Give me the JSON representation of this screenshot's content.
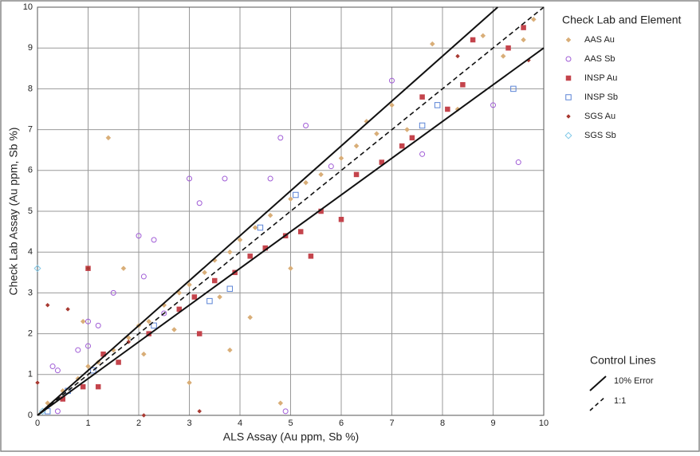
{
  "chart_data": {
    "type": "scatter",
    "xlabel": "ALS Assay (Au ppm, Sb %)",
    "ylabel": "Check Lab Assay (Au ppm, Sb %)",
    "xlim": [
      0,
      10
    ],
    "ylim": [
      0,
      10
    ],
    "xticks": [
      0,
      1,
      2,
      3,
      4,
      5,
      6,
      7,
      8,
      9,
      10
    ],
    "yticks": [
      0,
      1,
      2,
      3,
      4,
      5,
      6,
      7,
      8,
      9,
      10
    ],
    "grid": true,
    "legend_title": "Check Lab and Element",
    "series": [
      {
        "name": "AAS Au",
        "color": "#d9ae78",
        "marker": "diamond",
        "x": [
          1.4,
          0.2,
          0.5,
          0.8,
          1.0,
          1.2,
          1.5,
          1.8,
          2.0,
          2.2,
          2.5,
          2.8,
          3.0,
          3.3,
          3.5,
          3.8,
          4.0,
          4.3,
          4.6,
          5.0,
          5.3,
          5.6,
          6.0,
          6.3,
          6.7,
          7.0,
          7.8,
          8.3,
          8.8,
          9.2,
          9.6,
          9.8,
          4.8,
          3.0,
          3.8,
          4.2,
          1.7,
          2.1,
          0.9,
          5.0,
          6.5,
          7.3,
          3.6,
          2.7
        ],
        "values": [
          6.8,
          0.3,
          0.6,
          0.9,
          1.2,
          1.3,
          1.6,
          1.9,
          2.2,
          2.3,
          2.7,
          3.0,
          3.2,
          3.5,
          3.8,
          4.0,
          4.3,
          4.6,
          4.9,
          5.3,
          5.7,
          5.9,
          6.3,
          6.6,
          6.9,
          7.6,
          9.1,
          7.5,
          9.3,
          8.8,
          9.2,
          9.7,
          0.3,
          0.8,
          1.6,
          2.4,
          3.6,
          1.5,
          2.3,
          3.6,
          7.2,
          7.0,
          2.9,
          2.1
        ]
      },
      {
        "name": "AAS Sb",
        "color": "#a05cd6",
        "marker": "circle-open",
        "x": [
          3.0,
          3.2,
          3.7,
          4.8,
          5.3,
          4.6,
          2.3,
          2.0,
          2.1,
          1.5,
          1.2,
          1.0,
          1.0,
          0.8,
          0.3,
          0.4,
          7.0,
          7.6,
          9.0,
          9.5,
          4.9,
          0.4,
          2.5,
          5.8
        ],
        "values": [
          5.8,
          5.2,
          5.8,
          6.8,
          7.1,
          5.8,
          4.3,
          4.4,
          3.4,
          3.0,
          2.2,
          2.3,
          1.7,
          1.6,
          1.2,
          1.1,
          8.2,
          6.4,
          7.6,
          6.2,
          0.1,
          0.1,
          2.5,
          6.1
        ]
      },
      {
        "name": "INSP Au",
        "color": "#c4444c",
        "marker": "square",
        "x": [
          1.0,
          1.3,
          1.6,
          2.2,
          2.8,
          3.1,
          3.5,
          3.9,
          4.2,
          4.5,
          4.9,
          5.2,
          5.6,
          6.0,
          6.3,
          6.8,
          7.2,
          7.6,
          8.1,
          8.4,
          8.6,
          9.3,
          9.6,
          3.2,
          5.4,
          0.5,
          0.9,
          1.2,
          7.4
        ],
        "values": [
          3.6,
          1.5,
          1.3,
          2.0,
          2.6,
          2.9,
          3.3,
          3.5,
          3.9,
          4.1,
          4.4,
          4.5,
          5.0,
          4.8,
          5.9,
          6.2,
          6.6,
          7.8,
          7.5,
          8.1,
          9.2,
          9.0,
          9.5,
          2.0,
          3.9,
          0.4,
          0.7,
          0.7,
          6.8
        ]
      },
      {
        "name": "INSP Sb",
        "color": "#5b84d6",
        "marker": "square-open",
        "x": [
          0.2,
          0.6,
          1.1,
          2.3,
          3.4,
          3.8,
          4.4,
          5.1,
          7.6,
          7.9,
          9.4
        ],
        "values": [
          0.1,
          0.6,
          1.1,
          2.2,
          2.8,
          3.1,
          4.6,
          5.4,
          7.1,
          7.6,
          8.0
        ]
      },
      {
        "name": "SGS Au",
        "color": "#a83a32",
        "marker": "diamond-small",
        "x": [
          0.2,
          0.6,
          1.0,
          2.1,
          3.2,
          1.8,
          8.3,
          9.7,
          0.0
        ],
        "values": [
          2.7,
          2.6,
          3.6,
          0.0,
          0.1,
          1.8,
          8.8,
          8.7,
          0.8
        ]
      },
      {
        "name": "SGS Sb",
        "color": "#7ec8e8",
        "marker": "diamond-open",
        "x": [
          0.0,
          0.1
        ],
        "values": [
          3.6,
          0.1
        ]
      }
    ],
    "control_title": "Control Lines",
    "control_lines": [
      {
        "name": "10% Error",
        "dash": false,
        "slopes": [
          1.1,
          0.9
        ]
      },
      {
        "name": "1:1",
        "dash": true,
        "slopes": [
          1
        ]
      }
    ]
  }
}
